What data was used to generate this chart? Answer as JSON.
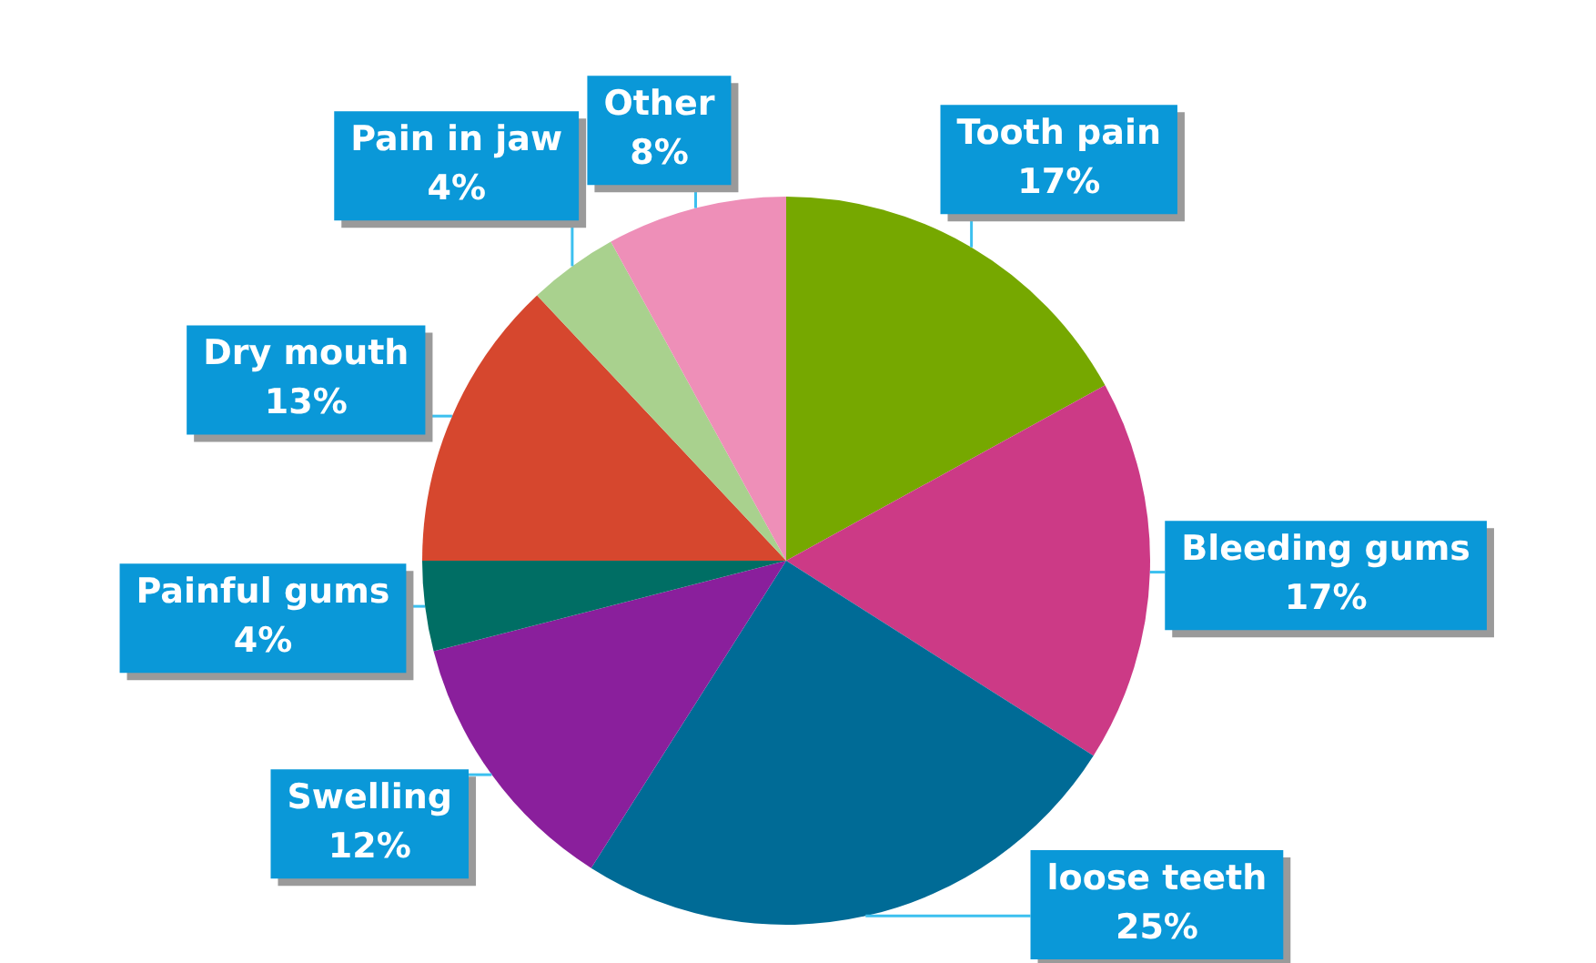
{
  "chart_data": {
    "type": "pie",
    "categories": [
      "Tooth pain",
      "Bleeding gums",
      "loose teeth",
      "Swelling",
      "Painful gums",
      "Dry mouth",
      "Pain in jaw",
      "Other"
    ],
    "values": [
      17,
      17,
      25,
      12,
      4,
      13,
      4,
      8
    ],
    "value_labels": [
      "17%",
      "17%",
      "25%",
      "12%",
      "4%",
      "13%",
      "4%",
      "8%"
    ],
    "colors": [
      "#76a800",
      "#cc3a86",
      "#006b96",
      "#8a1f9c",
      "#006e64",
      "#d6472e",
      "#a9d18e",
      "#ee8fb8"
    ],
    "legend": false
  }
}
